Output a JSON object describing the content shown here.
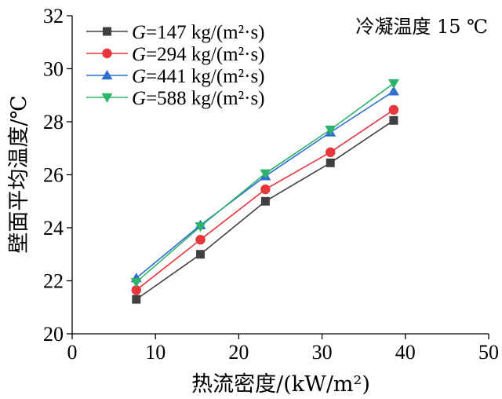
{
  "chart_data": {
    "type": "line",
    "xlabel": "热流密度/(kW/m²)",
    "ylabel": "壁面平均温度/℃",
    "annotation": "冷凝温度 15 ℃",
    "xlim": [
      0,
      50
    ],
    "ylim": [
      20,
      32
    ],
    "xticks": [
      0,
      10,
      20,
      30,
      40,
      50
    ],
    "yticks": [
      20,
      22,
      24,
      26,
      28,
      30,
      32
    ],
    "x": [
      7.7,
      15.4,
      23.2,
      31.0,
      38.6
    ],
    "series": [
      {
        "name": "G=147 kg/(m²·s)",
        "name_var": "G",
        "name_rest": "=147 kg/(m²·s)",
        "color": "#404040",
        "marker": "square",
        "values": [
          21.3,
          23.0,
          25.0,
          26.45,
          28.05
        ]
      },
      {
        "name": "G=294 kg/(m²·s)",
        "name_var": "G",
        "name_rest": "=294 kg/(m²·s)",
        "color": "#e8373c",
        "marker": "circle",
        "values": [
          21.65,
          23.55,
          25.45,
          26.85,
          28.45
        ]
      },
      {
        "name": "G=441 kg/(m²·s)",
        "name_var": "G",
        "name_rest": "=441 kg/(m²·s)",
        "color": "#2f6fd0",
        "marker": "triangle-up",
        "values": [
          22.1,
          24.1,
          25.95,
          27.6,
          29.15
        ]
      },
      {
        "name": "G=588 kg/(m²·s)",
        "name_var": "G",
        "name_rest": "=588 kg/(m²·s)",
        "color": "#2db36a",
        "marker": "triangle-down",
        "values": [
          21.95,
          24.05,
          26.05,
          27.7,
          29.45
        ]
      }
    ],
    "grid": false,
    "legend_position": "top-left"
  }
}
